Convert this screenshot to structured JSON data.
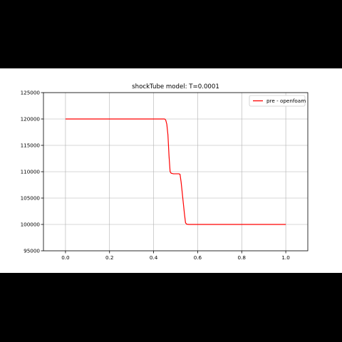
{
  "chart_data": {
    "type": "line",
    "title": "shockTube model: T=0.0001",
    "xlabel": "",
    "ylabel": "",
    "xlim": [
      -0.1,
      1.1
    ],
    "ylim": [
      95000,
      125000
    ],
    "xticks": [
      0.0,
      0.2,
      0.4,
      0.6,
      0.8,
      1.0
    ],
    "xtick_labels": [
      "0.0",
      "0.2",
      "0.4",
      "0.6",
      "0.8",
      "1.0"
    ],
    "yticks": [
      95000,
      100000,
      105000,
      110000,
      115000,
      120000,
      125000
    ],
    "ytick_labels": [
      "95000",
      "100000",
      "105000",
      "110000",
      "115000",
      "120000",
      "125000"
    ],
    "grid": true,
    "legend_position": "top-right",
    "series": [
      {
        "name": "pre - openfoam",
        "color": "#ff0000",
        "x": [
          0.0,
          0.44,
          0.45,
          0.455,
          0.46,
          0.465,
          0.47,
          0.475,
          0.48,
          0.49,
          0.5,
          0.51,
          0.515,
          0.52,
          0.525,
          0.53,
          0.535,
          0.54,
          0.545,
          0.55,
          0.56,
          0.6,
          0.8,
          1.0
        ],
        "y": [
          120000,
          120000,
          120000,
          119800,
          119000,
          117000,
          113000,
          110000,
          109700,
          109600,
          109600,
          109600,
          109600,
          109500,
          108000,
          106000,
          104000,
          102000,
          100300,
          100050,
          100000,
          100000,
          100000,
          100000
        ]
      }
    ]
  }
}
